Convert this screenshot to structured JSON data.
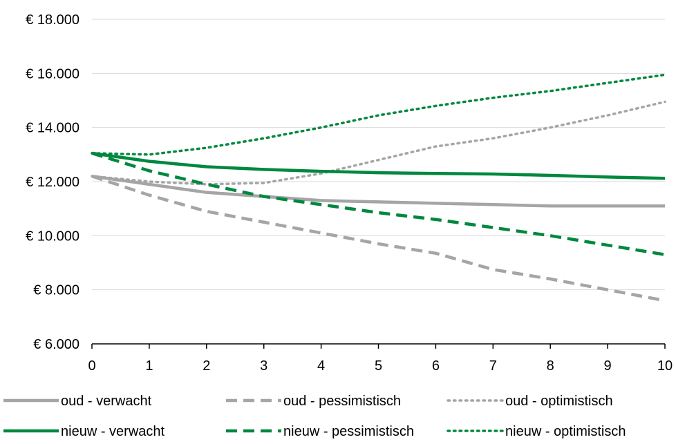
{
  "chart_data": {
    "type": "line",
    "title": "",
    "xlabel": "",
    "ylabel": "",
    "x": [
      0,
      1,
      2,
      3,
      4,
      5,
      6,
      7,
      8,
      9,
      10
    ],
    "xlim": [
      0,
      10
    ],
    "ylim": [
      6000,
      18000
    ],
    "x_ticks": [
      "0",
      "1",
      "2",
      "3",
      "4",
      "5",
      "6",
      "7",
      "8",
      "9",
      "10"
    ],
    "y_ticks": [
      {
        "value": 6000,
        "label": "€ 6.000"
      },
      {
        "value": 8000,
        "label": "€ 8.000"
      },
      {
        "value": 10000,
        "label": "€ 10.000"
      },
      {
        "value": 12000,
        "label": "€ 12.000"
      },
      {
        "value": 14000,
        "label": "€ 14.000"
      },
      {
        "value": 16000,
        "label": "€ 16.000"
      },
      {
        "value": 18000,
        "label": "€ 18.000"
      }
    ],
    "grid": "horizontal",
    "legend_position": "bottom",
    "series": [
      {
        "name": "oud - verwacht",
        "color": "#A5A5A5",
        "style": "solid",
        "values": [
          12200,
          11900,
          11600,
          11450,
          11300,
          11250,
          11200,
          11150,
          11100,
          11100,
          11100
        ]
      },
      {
        "name": "oud - pessimistisch",
        "color": "#A5A5A5",
        "style": "dashed",
        "values": [
          12200,
          11500,
          10900,
          10500,
          10100,
          9700,
          9350,
          8750,
          8400,
          8000,
          7600
        ]
      },
      {
        "name": "oud - optimistisch",
        "color": "#A5A5A5",
        "style": "dotted",
        "values": [
          12200,
          12000,
          11900,
          11950,
          12300,
          12800,
          13300,
          13600,
          14000,
          14450,
          14950
        ]
      },
      {
        "name": "nieuw - verwacht",
        "color": "#00883E",
        "style": "solid",
        "values": [
          13050,
          12750,
          12550,
          12450,
          12380,
          12330,
          12300,
          12280,
          12230,
          12170,
          12120
        ]
      },
      {
        "name": "nieuw - pessimistisch",
        "color": "#00883E",
        "style": "dashed",
        "values": [
          13050,
          12400,
          11900,
          11450,
          11150,
          10850,
          10600,
          10300,
          10000,
          9650,
          9300
        ]
      },
      {
        "name": "nieuw - optimistisch",
        "color": "#00883E",
        "style": "dotted",
        "values": [
          13050,
          13000,
          13250,
          13600,
          14000,
          14450,
          14800,
          15100,
          15350,
          15650,
          15950
        ]
      }
    ]
  }
}
